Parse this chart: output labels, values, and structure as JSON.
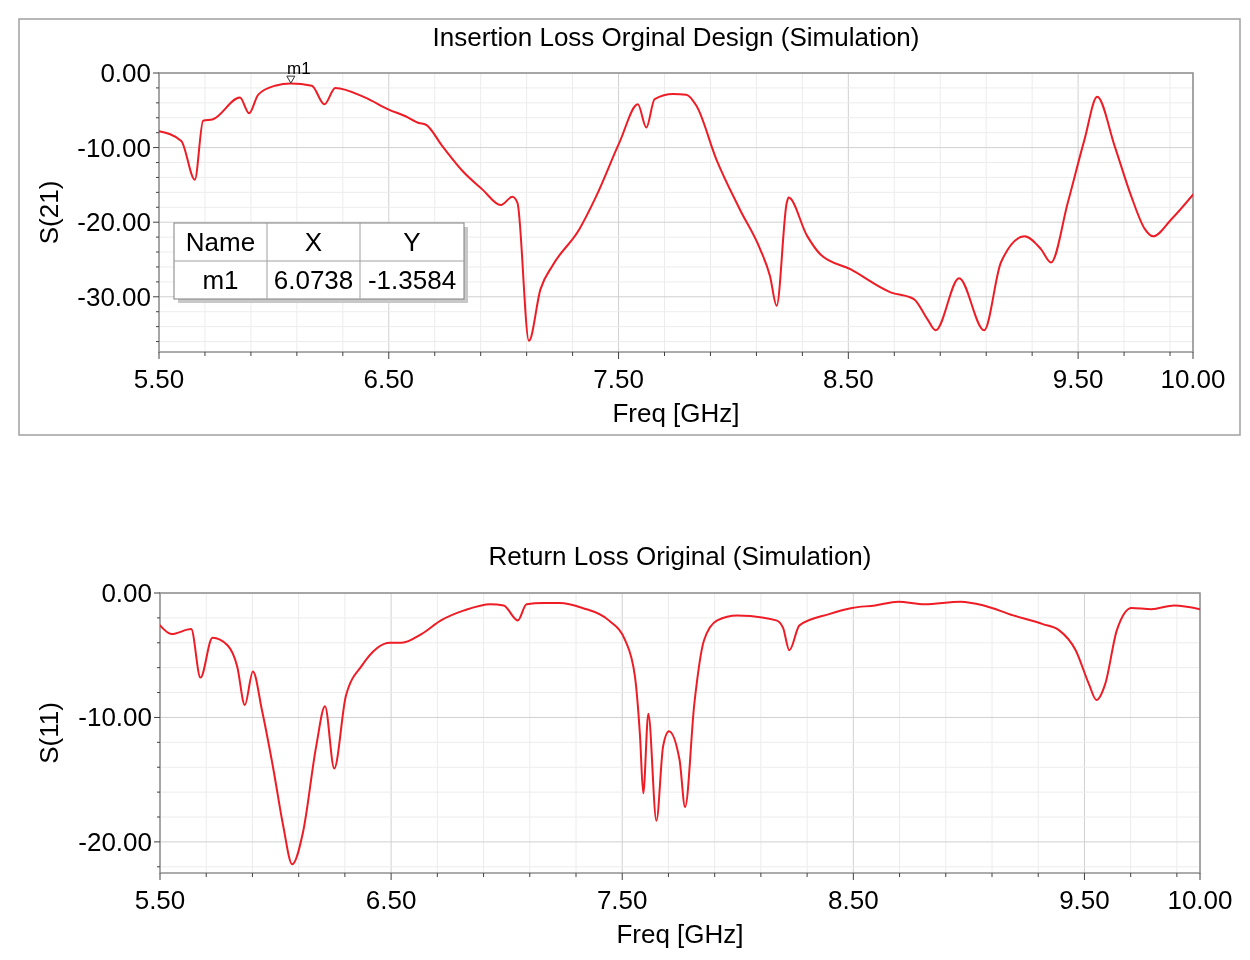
{
  "chart_data": [
    {
      "type": "line",
      "title": "Insertion Loss Orginal Design (Simulation)",
      "xlabel": "Freq [GHz]",
      "ylabel": "S(21)",
      "grid": true,
      "marker": "none",
      "line_style": "solid",
      "xlim": [
        5.5,
        10.0
      ],
      "ylim": [
        -37.4,
        0
      ],
      "xticks": [
        {
          "value": 5.5,
          "label": "5.50"
        },
        {
          "value": 5.7,
          "label": null
        },
        {
          "value": 5.9,
          "label": null
        },
        {
          "value": 6.1,
          "label": null
        },
        {
          "value": 6.3,
          "label": null
        },
        {
          "value": 6.5,
          "label": "6.50"
        },
        {
          "value": 6.7,
          "label": null
        },
        {
          "value": 6.9,
          "label": null
        },
        {
          "value": 7.1,
          "label": null
        },
        {
          "value": 7.3,
          "label": null
        },
        {
          "value": 7.5,
          "label": "7.50"
        },
        {
          "value": 7.7,
          "label": null
        },
        {
          "value": 7.9,
          "label": null
        },
        {
          "value": 8.1,
          "label": null
        },
        {
          "value": 8.3,
          "label": null
        },
        {
          "value": 8.5,
          "label": "8.50"
        },
        {
          "value": 8.7,
          "label": null
        },
        {
          "value": 8.9,
          "label": null
        },
        {
          "value": 9.1,
          "label": null
        },
        {
          "value": 9.3,
          "label": null
        },
        {
          "value": 9.5,
          "label": "9.50"
        },
        {
          "value": 9.7,
          "label": null
        },
        {
          "value": 9.9,
          "label": null
        },
        {
          "value": 10.0,
          "label": "10.00"
        }
      ],
      "yticks": [
        {
          "value": 0,
          "label": "0.00"
        },
        {
          "value": -2,
          "label": null
        },
        {
          "value": -4,
          "label": null
        },
        {
          "value": -6,
          "label": null
        },
        {
          "value": -8,
          "label": null
        },
        {
          "value": -10,
          "label": "-10.00"
        },
        {
          "value": -12,
          "label": null
        },
        {
          "value": -14,
          "label": null
        },
        {
          "value": -16,
          "label": null
        },
        {
          "value": -18,
          "label": null
        },
        {
          "value": -20,
          "label": "-20.00"
        },
        {
          "value": -22,
          "label": null
        },
        {
          "value": -24,
          "label": null
        },
        {
          "value": -26,
          "label": null
        },
        {
          "value": -28,
          "label": null
        },
        {
          "value": -30,
          "label": "-30.00"
        },
        {
          "value": -32,
          "label": null
        },
        {
          "value": -34,
          "label": null
        },
        {
          "value": -36,
          "label": null
        }
      ],
      "annotations": [
        {
          "text": "m1",
          "x": 6.0738,
          "y": -1.3584
        },
        "Name",
        "X",
        "Y",
        "m1",
        "6.0738",
        "-1.3584"
      ],
      "series": [
        {
          "color": "#ee1c25",
          "x": [
            5.5,
            5.597,
            5.656,
            5.692,
            5.735,
            5.852,
            5.892,
            5.932,
            6.005,
            6.0738,
            6.165,
            6.22,
            6.267,
            6.398,
            6.5,
            6.573,
            6.631,
            6.66,
            6.733,
            6.82,
            6.907,
            6.988,
            7.038,
            7.06,
            7.11,
            7.16,
            7.213,
            7.33,
            7.403,
            7.504,
            7.584,
            7.621,
            7.657,
            7.737,
            7.795,
            7.839,
            7.926,
            8.028,
            8.116,
            8.159,
            8.188,
            8.232,
            8.24,
            8.32,
            8.378,
            8.509,
            8.684,
            8.785,
            8.844,
            8.88,
            8.982,
            9.091,
            9.164,
            9.266,
            9.338,
            9.382,
            9.455,
            9.528,
            9.583,
            9.659,
            9.731,
            9.79,
            9.826,
            9.906,
            10.0
          ],
          "values": [
            -7.8,
            -9.1,
            -14.3,
            -6.4,
            -6.2,
            -3.3,
            -5.4,
            -2.9,
            -1.7,
            -1.4,
            -1.7,
            -4.2,
            -2.0,
            -3.3,
            -4.9,
            -5.8,
            -6.7,
            -6.9,
            -9.8,
            -13.1,
            -15.6,
            -17.7,
            -16.6,
            -17.4,
            -35.9,
            -29.0,
            -25.8,
            -20.9,
            -16.5,
            -9.3,
            -4.2,
            -7.3,
            -3.5,
            -2.8,
            -2.9,
            -4.4,
            -11.6,
            -18.3,
            -23.6,
            -27.2,
            -31.2,
            -17.4,
            -16.7,
            -21.8,
            -24.3,
            -26.3,
            -29.4,
            -30.3,
            -33.0,
            -34.5,
            -27.5,
            -34.5,
            -25.4,
            -21.9,
            -23.6,
            -25.4,
            -17.4,
            -8.9,
            -3.2,
            -9.8,
            -16.5,
            -20.9,
            -21.9,
            -19.6,
            -16.3
          ]
        }
      ]
    },
    {
      "type": "line",
      "title": "Return Loss Original (Simulation)",
      "xlabel": "Freq [GHz]",
      "ylabel": "S(11)",
      "grid": true,
      "marker": "none",
      "line_style": "solid",
      "xlim": [
        5.5,
        10.0
      ],
      "ylim": [
        -22.5,
        0
      ],
      "xticks": [
        {
          "value": 5.5,
          "label": "5.50"
        },
        {
          "value": 5.7,
          "label": null
        },
        {
          "value": 5.9,
          "label": null
        },
        {
          "value": 6.1,
          "label": null
        },
        {
          "value": 6.3,
          "label": null
        },
        {
          "value": 6.5,
          "label": "6.50"
        },
        {
          "value": 6.7,
          "label": null
        },
        {
          "value": 6.9,
          "label": null
        },
        {
          "value": 7.1,
          "label": null
        },
        {
          "value": 7.3,
          "label": null
        },
        {
          "value": 7.5,
          "label": "7.50"
        },
        {
          "value": 7.7,
          "label": null
        },
        {
          "value": 7.9,
          "label": null
        },
        {
          "value": 8.1,
          "label": null
        },
        {
          "value": 8.3,
          "label": null
        },
        {
          "value": 8.5,
          "label": "8.50"
        },
        {
          "value": 8.7,
          "label": null
        },
        {
          "value": 8.9,
          "label": null
        },
        {
          "value": 9.1,
          "label": null
        },
        {
          "value": 9.3,
          "label": null
        },
        {
          "value": 9.5,
          "label": "9.50"
        },
        {
          "value": 9.7,
          "label": null
        },
        {
          "value": 9.9,
          "label": null
        },
        {
          "value": 10.0,
          "label": "10.00"
        }
      ],
      "yticks": [
        {
          "value": 0,
          "label": "0.00"
        },
        {
          "value": -2,
          "label": null
        },
        {
          "value": -4,
          "label": null
        },
        {
          "value": -6,
          "label": null
        },
        {
          "value": -8,
          "label": null
        },
        {
          "value": -10,
          "label": "-10.00"
        },
        {
          "value": -12,
          "label": null
        },
        {
          "value": -14,
          "label": null
        },
        {
          "value": -16,
          "label": null
        },
        {
          "value": -18,
          "label": null
        },
        {
          "value": -20,
          "label": "-20.00"
        },
        {
          "value": -22,
          "label": null
        }
      ],
      "series": [
        {
          "color": "#ee1c25",
          "x": [
            5.5,
            5.55,
            5.635,
            5.675,
            5.727,
            5.792,
            5.834,
            5.867,
            5.902,
            5.941,
            5.991,
            6.033,
            6.072,
            6.119,
            6.176,
            6.214,
            6.254,
            6.304,
            6.375,
            6.496,
            6.546,
            6.631,
            6.716,
            6.816,
            6.93,
            6.987,
            7.048,
            7.086,
            7.157,
            7.229,
            7.328,
            7.442,
            7.513,
            7.555,
            7.577,
            7.591,
            7.613,
            7.648,
            7.677,
            7.702,
            7.748,
            7.772,
            7.812,
            7.854,
            7.911,
            7.997,
            8.167,
            8.196,
            8.223,
            8.267,
            8.395,
            8.494,
            8.594,
            8.694,
            8.808,
            8.964,
            9.064,
            9.192,
            9.32,
            9.391,
            9.462,
            9.519,
            9.552,
            9.59,
            9.64,
            9.704,
            9.789,
            9.889,
            10.0
          ],
          "values": [
            -2.6,
            -3.3,
            -2.9,
            -6.8,
            -3.6,
            -4.2,
            -5.9,
            -9.0,
            -6.3,
            -9.4,
            -14.2,
            -18.7,
            -21.8,
            -19.2,
            -12.3,
            -9.1,
            -14.1,
            -8.3,
            -5.8,
            -4.0,
            -4.0,
            -3.3,
            -2.2,
            -1.4,
            -0.9,
            -1.0,
            -2.2,
            -0.9,
            -0.8,
            -0.8,
            -1.2,
            -2.2,
            -3.8,
            -6.7,
            -11.5,
            -16.1,
            -9.7,
            -18.3,
            -12.3,
            -11.1,
            -13.4,
            -17.2,
            -8.9,
            -3.8,
            -2.2,
            -1.8,
            -2.2,
            -2.8,
            -4.6,
            -2.6,
            -1.7,
            -1.2,
            -1.0,
            -0.7,
            -0.9,
            -0.7,
            -1.0,
            -1.8,
            -2.5,
            -3.0,
            -4.6,
            -7.3,
            -8.6,
            -7.3,
            -3.0,
            -1.2,
            -1.3,
            -1.0,
            -1.3
          ]
        }
      ]
    }
  ]
}
